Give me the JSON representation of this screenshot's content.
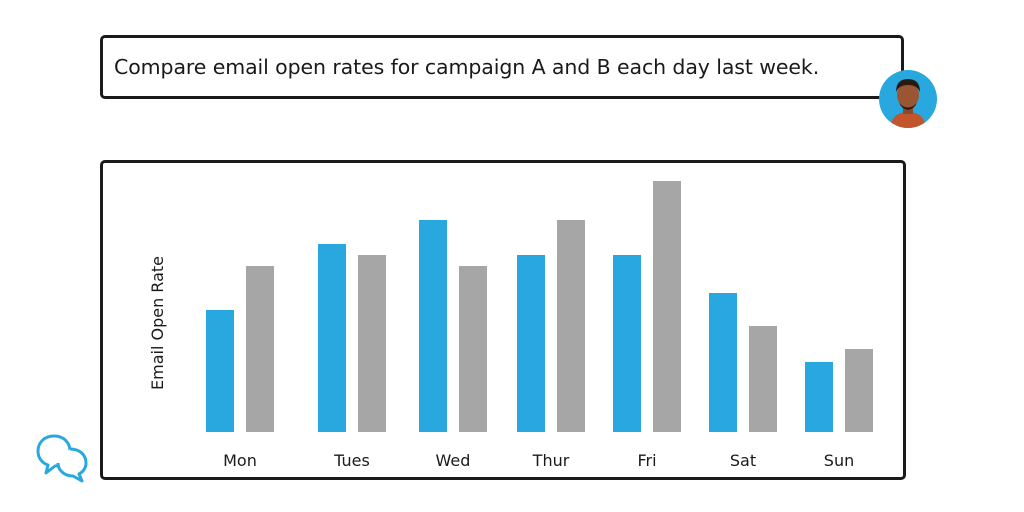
{
  "query": {
    "text": "Compare email open rates for campaign A and B each day last week."
  },
  "icons": {
    "user": "user-avatar-icon",
    "brand": "chat-bubbles-icon"
  },
  "colors": {
    "series_a": "#29a8e0",
    "series_b": "#a6a6a6",
    "accent": "#29a8e0",
    "border": "#1a1a1a"
  },
  "chart_data": {
    "type": "bar",
    "ylabel": "Email Open Rate",
    "xlabel": "",
    "categories": [
      "Mon",
      "Tues",
      "Wed",
      "Thur",
      "Fri",
      "Sat",
      "Sun"
    ],
    "series": [
      {
        "values": [
          122,
          188,
          212,
          177,
          177,
          139,
          70
        ],
        "color": "#29a8e0"
      },
      {
        "values": [
          166,
          177,
          166,
          212,
          251,
          106,
          83
        ],
        "color": "#a6a6a6"
      }
    ],
    "ylim": [
      0,
      260
    ],
    "grid": false,
    "legend": "none"
  }
}
